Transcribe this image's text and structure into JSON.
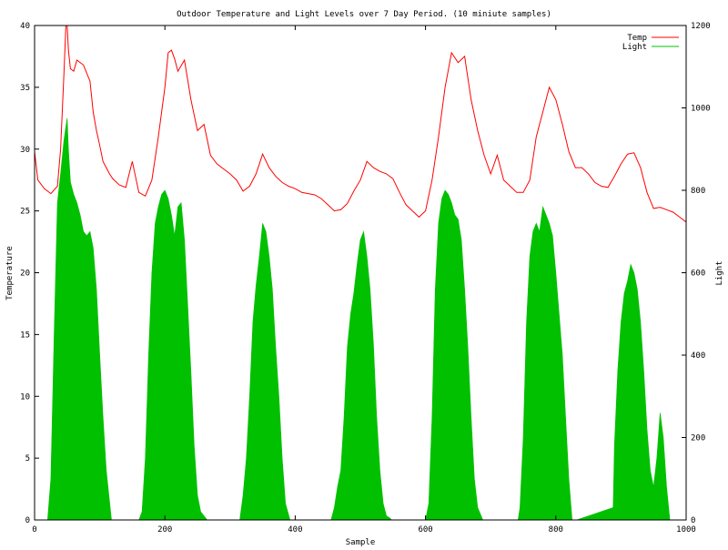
{
  "chart_data": {
    "type": "line",
    "title": "Outdoor Temperature and Light Levels over 7 Day Period. (10 miniute samples)",
    "xlabel": "Sample",
    "ylabel": "Temperature",
    "y2label": "Light",
    "xlim": [
      0,
      1000
    ],
    "ylim": [
      0,
      40
    ],
    "y2lim": [
      0,
      1200
    ],
    "x_ticks": [
      0,
      200,
      400,
      600,
      800,
      1000
    ],
    "y_ticks": [
      0,
      5,
      10,
      15,
      20,
      25,
      30,
      35,
      40
    ],
    "y2_ticks": [
      0,
      200,
      400,
      600,
      800,
      1000,
      1200
    ],
    "grid": false,
    "legend_position": "top-right",
    "series": [
      {
        "name": "Temp",
        "axis": "left",
        "color": "#ff0000",
        "x": [
          0,
          5,
          15,
          25,
          35,
          40,
          45,
          48,
          50,
          52,
          55,
          60,
          65,
          75,
          85,
          90,
          95,
          100,
          105,
          110,
          115,
          120,
          130,
          140,
          150,
          160,
          170,
          180,
          190,
          200,
          205,
          210,
          215,
          220,
          230,
          240,
          250,
          260,
          270,
          280,
          290,
          300,
          310,
          320,
          330,
          340,
          350,
          360,
          370,
          380,
          390,
          400,
          410,
          420,
          430,
          440,
          450,
          460,
          470,
          480,
          490,
          500,
          510,
          520,
          530,
          540,
          550,
          560,
          570,
          580,
          590,
          600,
          610,
          620,
          630,
          640,
          650,
          660,
          670,
          680,
          690,
          700,
          710,
          720,
          730,
          740,
          750,
          760,
          770,
          780,
          790,
          800,
          810,
          820,
          830,
          840,
          850,
          860,
          870,
          880,
          890,
          900,
          910,
          920,
          930,
          940,
          950,
          960,
          970,
          980,
          990,
          1000
        ],
        "y": [
          29.8,
          27.5,
          26.8,
          26.4,
          27.0,
          30.0,
          36.0,
          40.0,
          40.0,
          38.0,
          36.5,
          36.3,
          37.2,
          36.8,
          35.5,
          33.0,
          31.5,
          30.3,
          29.0,
          28.5,
          28.0,
          27.6,
          27.1,
          26.9,
          29.0,
          26.5,
          26.2,
          27.5,
          31.0,
          35.0,
          37.8,
          38.0,
          37.3,
          36.3,
          37.2,
          34.0,
          31.5,
          32.0,
          29.5,
          28.8,
          28.4,
          28.0,
          27.5,
          26.6,
          27.0,
          28.0,
          29.6,
          28.5,
          27.8,
          27.3,
          27.0,
          26.8,
          26.5,
          26.4,
          26.3,
          26.0,
          25.5,
          25.0,
          25.1,
          25.6,
          26.6,
          27.5,
          29.0,
          28.5,
          28.2,
          28.0,
          27.6,
          26.5,
          25.5,
          25.0,
          24.5,
          25.0,
          27.5,
          31.0,
          35.0,
          37.8,
          37.0,
          37.5,
          34.0,
          31.5,
          29.5,
          28.0,
          29.5,
          27.5,
          27.0,
          26.5,
          26.5,
          27.5,
          31.0,
          33.0,
          35.0,
          34.0,
          32.0,
          29.8,
          28.5,
          28.5,
          28.0,
          27.3,
          27.0,
          26.9,
          27.8,
          28.8,
          29.6,
          29.7,
          28.5,
          26.5,
          25.2,
          25.3,
          25.1,
          24.9,
          24.5,
          24.1
        ]
      },
      {
        "name": "Light",
        "axis": "right",
        "color": "#00c000",
        "x": [
          0,
          20,
          25,
          30,
          35,
          40,
          45,
          50,
          52,
          55,
          60,
          65,
          70,
          75,
          80,
          85,
          90,
          95,
          100,
          105,
          110,
          118,
          160,
          165,
          170,
          175,
          180,
          185,
          190,
          195,
          200,
          205,
          210,
          215,
          220,
          225,
          230,
          235,
          240,
          245,
          250,
          255,
          265,
          315,
          320,
          325,
          330,
          335,
          340,
          345,
          350,
          355,
          360,
          365,
          370,
          375,
          380,
          385,
          392,
          455,
          460,
          465,
          470,
          475,
          480,
          485,
          490,
          495,
          500,
          505,
          510,
          515,
          520,
          525,
          530,
          535,
          540,
          545,
          548,
          600,
          605,
          610,
          615,
          620,
          625,
          630,
          635,
          640,
          645,
          650,
          655,
          660,
          665,
          670,
          675,
          680,
          688,
          742,
          745,
          750,
          755,
          760,
          765,
          770,
          775,
          780,
          785,
          790,
          795,
          800,
          805,
          810,
          815,
          820,
          825,
          832,
          888,
          890,
          895,
          900,
          905,
          910,
          915,
          920,
          925,
          930,
          935,
          940,
          945,
          950,
          955,
          960,
          965,
          970,
          975,
          980,
          1000
        ],
        "y": [
          0,
          0,
          100,
          450,
          770,
          840,
          920,
          975,
          900,
          820,
          790,
          770,
          740,
          700,
          690,
          700,
          660,
          560,
          400,
          250,
          120,
          0,
          0,
          20,
          150,
          400,
          600,
          720,
          760,
          790,
          800,
          780,
          740,
          690,
          760,
          770,
          680,
          520,
          360,
          180,
          60,
          20,
          0,
          0,
          60,
          150,
          300,
          480,
          570,
          640,
          720,
          700,
          640,
          560,
          420,
          300,
          150,
          40,
          0,
          0,
          30,
          80,
          120,
          250,
          420,
          500,
          550,
          620,
          680,
          700,
          640,
          560,
          430,
          250,
          120,
          40,
          10,
          5,
          0,
          0,
          40,
          250,
          560,
          720,
          780,
          800,
          790,
          770,
          740,
          730,
          680,
          560,
          420,
          250,
          100,
          30,
          0,
          0,
          30,
          200,
          480,
          640,
          700,
          720,
          700,
          760,
          740,
          720,
          690,
          600,
          500,
          400,
          250,
          100,
          0,
          0,
          30,
          180,
          360,
          480,
          550,
          580,
          620,
          600,
          560,
          480,
          360,
          220,
          120,
          80,
          150,
          260,
          200,
          80,
          0,
          0,
          0
        ]
      }
    ]
  }
}
